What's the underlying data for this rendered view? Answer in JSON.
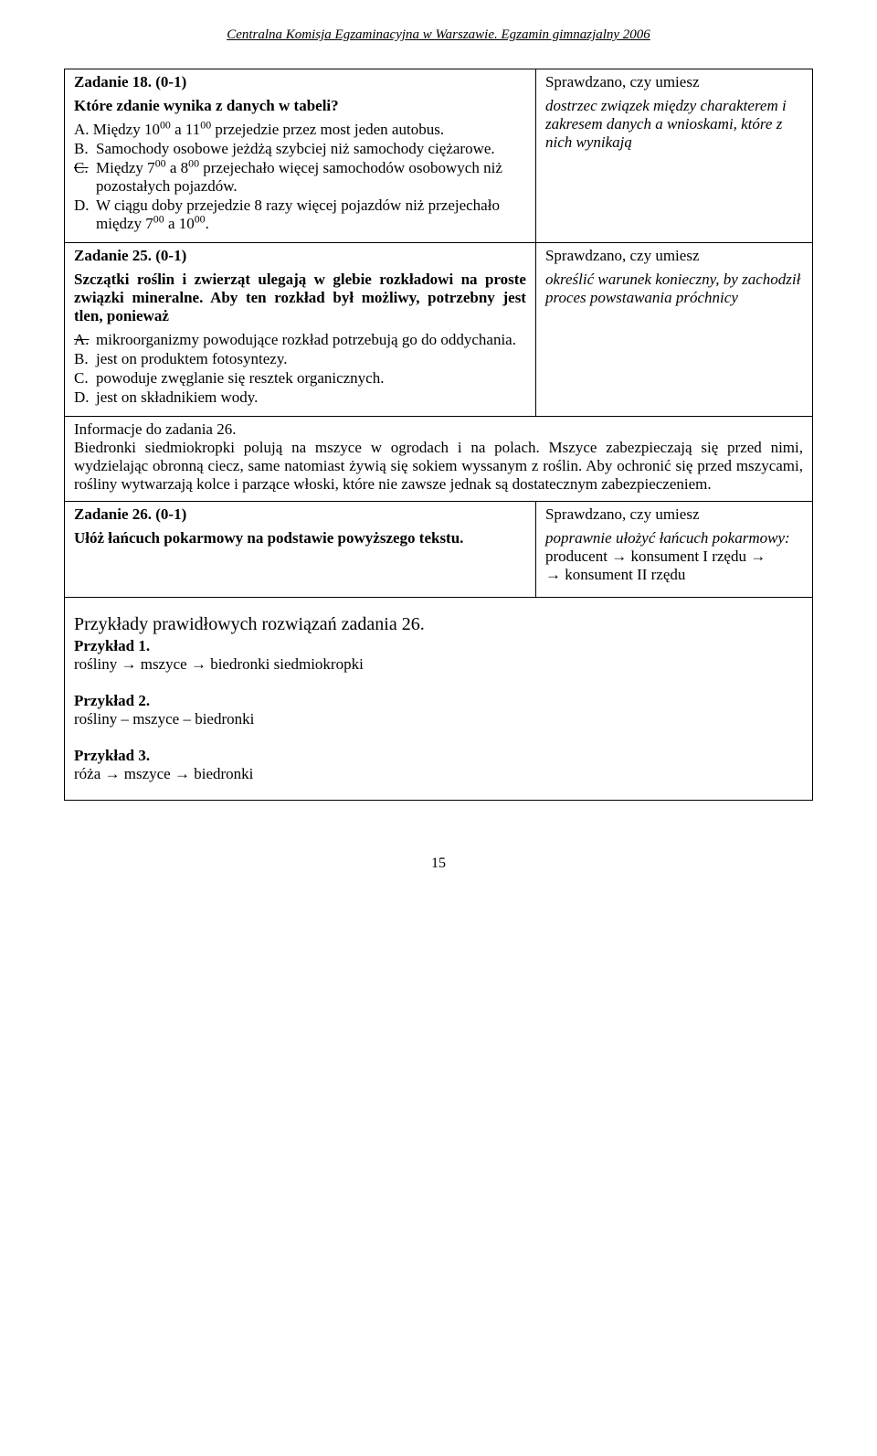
{
  "header": "Centralna Komisja Egzaminacyjna w Warszawie. Egzamin gimnazjalny 2006",
  "task18": {
    "title": "Zadanie 18. (0-1)",
    "question": "Które zdanie wynika z danych w tabeli?",
    "optA_pre": "A. Między 10",
    "optA_sup1": "00",
    "optA_mid": " a 11",
    "optA_sup2": "00",
    "optA_post": " przejedzie przez most jeden autobus.",
    "optB": "B.",
    "optB_text": "Samochody osobowe jeżdżą szybciej niż samochody ciężarowe.",
    "optC": "C.",
    "optC_pre": "Między 7",
    "optC_sup1": "00",
    "optC_mid": " a 8",
    "optC_sup2": "00",
    "optC_post": " przejechało więcej samochodów osobowych niż pozostałych pojazdów.",
    "optD": "D.",
    "optD_pre": "W ciągu doby przejedzie 8 razy więcej pojazdów niż przejechało między 7",
    "optD_sup1": "00",
    "optD_mid": " a 10",
    "optD_sup2": "00",
    "optD_post": ".",
    "check_title": "Sprawdzano, czy umiesz",
    "check_text": "dostrzec związek między charakterem i zakresem danych a wnioskami, które z nich wynikają"
  },
  "task25": {
    "title": "Zadanie 25. (0-1)",
    "question": "Szczątki roślin i zwierząt ulegają w glebie rozkładowi na proste związki mineralne. Aby ten rozkład był możliwy, potrzebny jest tlen, ponieważ",
    "optA": "A.",
    "optA_text": "mikroorganizmy powodujące rozkład potrzebują go do oddychania.",
    "optB": "B.",
    "optB_text": "jest on produktem fotosyntezy.",
    "optC": "C.",
    "optC_text": "powoduje zwęglanie się resztek organicznych.",
    "optD": "D.",
    "optD_text": "jest on składnikiem wody.",
    "check_title": "Sprawdzano, czy umiesz",
    "check_text": "określić warunek konieczny, by zachodził proces powstawania próchnicy"
  },
  "info26": "Informacje do zadania 26.\nBiedronki siedmiokropki polują na mszyce w ogrodach i na polach. Mszyce zabezpieczają się przed nimi, wydzielając obronną ciecz, same natomiast żywią się sokiem wyssanym z roślin. Aby ochronić się przed mszycami, rośliny wytwarzają kolce i parzące włoski, które nie zawsze jednak są dostatecznym zabezpieczeniem.",
  "task26": {
    "title": "Zadanie 26. (0-1)",
    "question": "Ułóż łańcuch pokarmowy na podstawie powyższego tekstu.",
    "check_title": "Sprawdzano, czy umiesz",
    "check_line1": "poprawnie ułożyć łańcuch pokarmowy:",
    "check_line2": "producent → konsument I rzędu →",
    "check_line3": "→ konsument II rzędu"
  },
  "answers": {
    "heading": "Przykłady prawidłowych rozwiązań zadania 26.",
    "ex1_label": "Przykład 1.",
    "ex1_text": "rośliny →  mszyce → biedronki siedmiokropki",
    "ex2_label": "Przykład 2.",
    "ex2_text": "rośliny – mszyce – biedronki",
    "ex3_label": "Przykład 3.",
    "ex3_text": "róża →  mszyce →  biedronki"
  },
  "page_number": "15"
}
